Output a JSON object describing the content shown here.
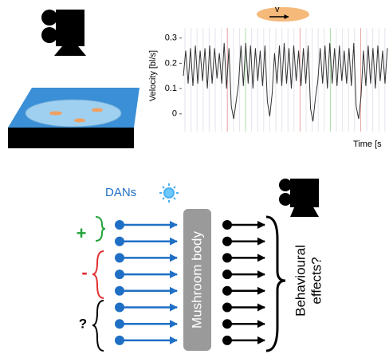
{
  "chart_data": {
    "type": "line",
    "annotation": "v",
    "y_label": "Velocity [bl/s]",
    "x_label": "Time [s",
    "ylim": [
      -0.07,
      0.34
    ],
    "yticks": [
      0,
      0.1,
      0.2,
      0.3
    ],
    "color": "#333333",
    "values": [
      0.15,
      0.25,
      0.12,
      0.26,
      0.11,
      0.27,
      0.12,
      0.25,
      0.13,
      0.26,
      0.1,
      0.27,
      0.12,
      0.26,
      0.14,
      0.24,
      0.12,
      0.28,
      0.1,
      0.26,
      0.03,
      -0.02,
      0.05,
      0.12,
      0.27,
      0.11,
      0.28,
      0.12,
      0.27,
      0.1,
      0.26,
      0.13,
      0.25,
      0.11,
      0.27,
      0.05,
      -0.01,
      0.08,
      0.24,
      0.12,
      0.27,
      0.11,
      0.28,
      0.12,
      0.26,
      0.1,
      0.27,
      0.13,
      0.25,
      0.11,
      0.26,
      0.12,
      0.27,
      0.02,
      -0.03,
      0.06,
      0.13,
      0.26,
      0.12,
      0.27,
      0.1,
      0.28,
      0.12,
      0.26,
      0.11,
      0.27,
      0.13,
      0.25,
      0.12,
      0.26,
      0.11,
      0.28,
      0.03,
      -0.02,
      0.07,
      0.25,
      0.11,
      0.27,
      0.12,
      0.26,
      0.1,
      0.27,
      0.13,
      0.25,
      0.12,
      0.26
    ]
  },
  "diagram": {
    "dans": "DANs",
    "plus": "+",
    "minus": "-",
    "question": "?",
    "mushroom_body": "Mushroom body",
    "behaviour": [
      "Behavioural",
      "effects?"
    ]
  }
}
